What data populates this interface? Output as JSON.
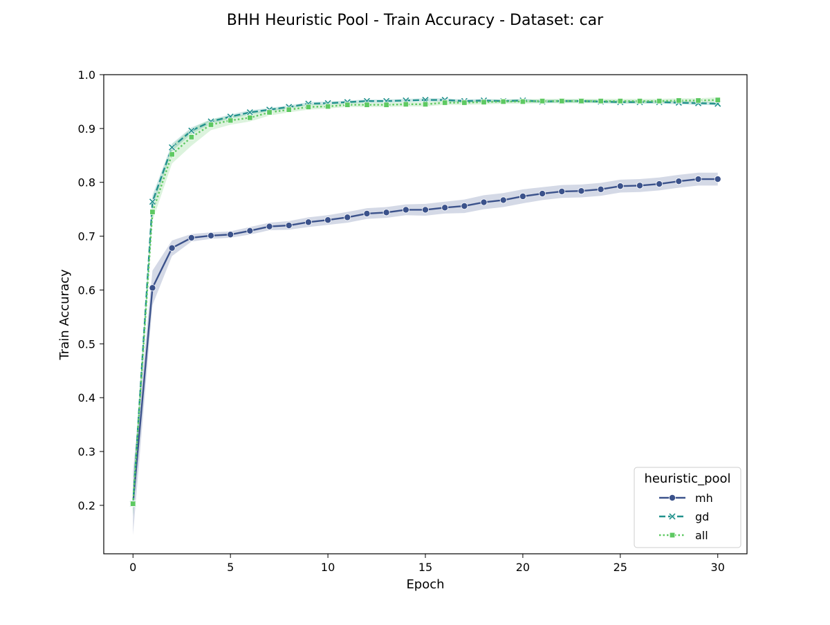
{
  "chart_data": {
    "type": "line",
    "title": "BHH Heuristic Pool - Train Accuracy - Dataset: car",
    "xlabel": "Epoch",
    "ylabel": "Train Accuracy",
    "xlim": [
      -1.5,
      31.5
    ],
    "ylim": [
      0.11,
      1.0
    ],
    "xticks": [
      0,
      5,
      10,
      15,
      20,
      25,
      30
    ],
    "xtick_labels": [
      "0",
      "5",
      "10",
      "15",
      "20",
      "25",
      "30"
    ],
    "yticks": [
      0.2,
      0.3,
      0.4,
      0.5,
      0.6,
      0.7,
      0.8,
      0.9,
      1.0
    ],
    "ytick_labels": [
      "0.2",
      "0.3",
      "0.4",
      "0.5",
      "0.6",
      "0.7",
      "0.8",
      "0.9",
      "1.0"
    ],
    "grid": false,
    "legend": {
      "title": "heuristic_pool",
      "placement": "lower-right"
    },
    "x": [
      0,
      1,
      2,
      3,
      4,
      5,
      6,
      7,
      8,
      9,
      10,
      11,
      12,
      13,
      14,
      15,
      16,
      17,
      18,
      19,
      20,
      21,
      22,
      23,
      24,
      25,
      26,
      27,
      28,
      29,
      30
    ],
    "series": [
      {
        "name": "mh",
        "color": "#3b528b",
        "linestyle": "solid",
        "marker": "circle",
        "values": [
          0.203,
          0.604,
          0.678,
          0.697,
          0.701,
          0.703,
          0.71,
          0.718,
          0.72,
          0.726,
          0.73,
          0.735,
          0.742,
          0.744,
          0.749,
          0.749,
          0.753,
          0.756,
          0.763,
          0.767,
          0.774,
          0.779,
          0.783,
          0.784,
          0.787,
          0.793,
          0.794,
          0.797,
          0.802,
          0.806,
          0.806
        ],
        "lower": [
          0.145,
          0.572,
          0.663,
          0.69,
          0.695,
          0.697,
          0.703,
          0.711,
          0.712,
          0.717,
          0.721,
          0.725,
          0.732,
          0.734,
          0.739,
          0.738,
          0.742,
          0.743,
          0.75,
          0.754,
          0.761,
          0.767,
          0.771,
          0.772,
          0.775,
          0.781,
          0.782,
          0.785,
          0.79,
          0.794,
          0.794
        ],
        "upper": [
          0.262,
          0.636,
          0.692,
          0.704,
          0.707,
          0.709,
          0.717,
          0.725,
          0.728,
          0.735,
          0.739,
          0.745,
          0.752,
          0.754,
          0.759,
          0.76,
          0.764,
          0.768,
          0.776,
          0.78,
          0.787,
          0.791,
          0.795,
          0.796,
          0.799,
          0.805,
          0.806,
          0.809,
          0.814,
          0.818,
          0.818
        ]
      },
      {
        "name": "gd",
        "color": "#21918c",
        "linestyle": "dashed",
        "marker": "x",
        "values": [
          0.203,
          0.764,
          0.865,
          0.896,
          0.913,
          0.922,
          0.93,
          0.935,
          0.94,
          0.946,
          0.947,
          0.949,
          0.951,
          0.951,
          0.952,
          0.953,
          0.953,
          0.951,
          0.952,
          0.951,
          0.952,
          0.95,
          0.951,
          0.951,
          0.95,
          0.949,
          0.949,
          0.949,
          0.948,
          0.947,
          0.946
        ],
        "lower": [
          0.18,
          0.752,
          0.858,
          0.89,
          0.909,
          0.918,
          0.926,
          0.932,
          0.937,
          0.943,
          0.944,
          0.946,
          0.948,
          0.948,
          0.949,
          0.95,
          0.95,
          0.948,
          0.949,
          0.948,
          0.949,
          0.947,
          0.948,
          0.948,
          0.947,
          0.946,
          0.946,
          0.946,
          0.945,
          0.944,
          0.943
        ],
        "upper": [
          0.226,
          0.776,
          0.872,
          0.902,
          0.917,
          0.926,
          0.934,
          0.938,
          0.943,
          0.949,
          0.95,
          0.952,
          0.954,
          0.954,
          0.955,
          0.956,
          0.956,
          0.954,
          0.955,
          0.954,
          0.955,
          0.953,
          0.954,
          0.954,
          0.953,
          0.952,
          0.952,
          0.952,
          0.951,
          0.95,
          0.949
        ]
      },
      {
        "name": "all",
        "color": "#5ec962",
        "linestyle": "dotted",
        "marker": "square",
        "values": [
          0.203,
          0.745,
          0.852,
          0.884,
          0.907,
          0.915,
          0.92,
          0.93,
          0.935,
          0.94,
          0.941,
          0.944,
          0.944,
          0.944,
          0.945,
          0.945,
          0.948,
          0.948,
          0.949,
          0.95,
          0.95,
          0.951,
          0.951,
          0.951,
          0.951,
          0.951,
          0.951,
          0.951,
          0.952,
          0.952,
          0.953
        ],
        "lower": [
          0.18,
          0.728,
          0.835,
          0.868,
          0.897,
          0.907,
          0.913,
          0.924,
          0.93,
          0.935,
          0.937,
          0.94,
          0.94,
          0.94,
          0.941,
          0.941,
          0.944,
          0.944,
          0.945,
          0.946,
          0.946,
          0.947,
          0.947,
          0.947,
          0.947,
          0.947,
          0.947,
          0.947,
          0.948,
          0.948,
          0.948
        ],
        "upper": [
          0.226,
          0.762,
          0.869,
          0.9,
          0.917,
          0.923,
          0.927,
          0.936,
          0.94,
          0.945,
          0.945,
          0.948,
          0.948,
          0.948,
          0.949,
          0.949,
          0.952,
          0.952,
          0.953,
          0.954,
          0.954,
          0.955,
          0.955,
          0.955,
          0.955,
          0.955,
          0.955,
          0.955,
          0.956,
          0.956,
          0.958
        ]
      }
    ]
  }
}
